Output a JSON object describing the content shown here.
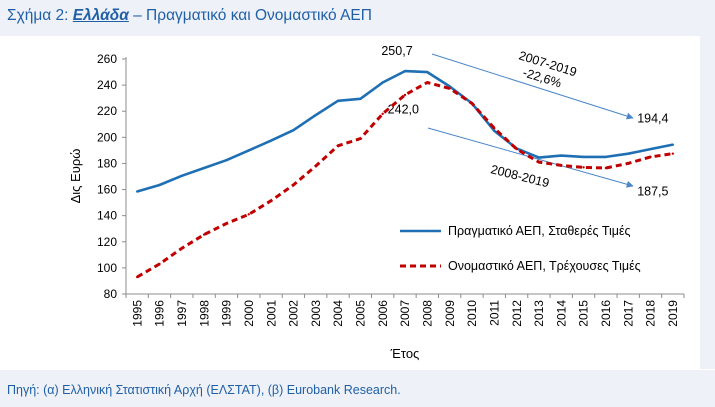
{
  "header": {
    "prefix": "Σχήμα 2: ",
    "country": "Ελλάδα",
    "rest": " – Πραγματικό και Ονομαστικό ΑΕΠ"
  },
  "footer": {
    "source": "Πηγή: (α) Ελληνική Στατιστική Αρχή (ΕΛΣΤΑΤ), (β) Eurobank Research."
  },
  "chart_data": {
    "type": "line",
    "xlabel": "Έτος",
    "ylabel": "Δις Ευρώ",
    "ylim": [
      80,
      260
    ],
    "yticks": [
      "80",
      "100",
      "120",
      "140",
      "160",
      "180",
      "200",
      "220",
      "240",
      "260"
    ],
    "x": [
      "1995",
      "1996",
      "1997",
      "1998",
      "1999",
      "2000",
      "2001",
      "2002",
      "2003",
      "2004",
      "2005",
      "2006",
      "2007",
      "2008",
      "2009",
      "2010",
      "2011",
      "2012",
      "2013",
      "2014",
      "2015",
      "2016",
      "2017",
      "2018",
      "2019"
    ],
    "series": [
      {
        "name": "Πραγματικό ΑΕΠ, Σταθερές Τιμές",
        "color": "#1f6fb4",
        "style": "solid",
        "values": [
          158.5,
          163.5,
          170.5,
          176.5,
          182.5,
          190.0,
          197.5,
          205.5,
          217.0,
          228.0,
          229.5,
          242.0,
          250.7,
          250.0,
          239.0,
          226.0,
          205.0,
          191.5,
          184.5,
          186.0,
          185.0,
          185.0,
          187.5,
          191.0,
          194.4
        ]
      },
      {
        "name": "Ονομαστικό ΑΕΠ, Τρέχουσες Τιμές",
        "color": "#c00000",
        "style": "dashed",
        "values": [
          93.0,
          103.0,
          115.0,
          125.5,
          134.0,
          141.0,
          151.5,
          163.5,
          178.0,
          193.5,
          199.0,
          218.0,
          232.5,
          242.0,
          237.5,
          226.0,
          207.0,
          191.0,
          181.0,
          178.5,
          177.0,
          176.5,
          180.0,
          185.0,
          187.5
        ]
      }
    ],
    "annotations": [
      {
        "text": "250,7"
      },
      {
        "text": "242,0"
      },
      {
        "text": "194,4"
      },
      {
        "text": "187,5"
      },
      {
        "text": "2007-2019"
      },
      {
        "text": "-22,6%"
      },
      {
        "text": "2008-2019"
      }
    ],
    "grid": false,
    "legend": "right"
  }
}
